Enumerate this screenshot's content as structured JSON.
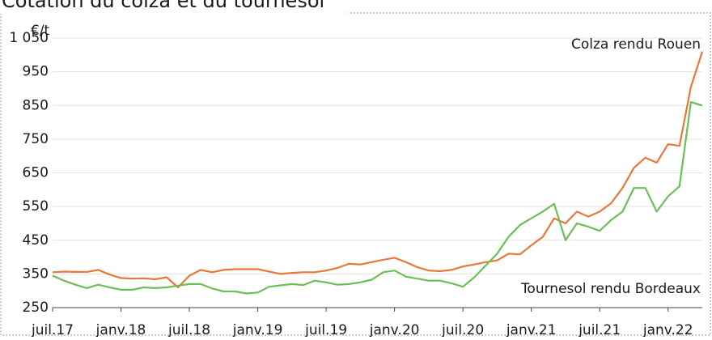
{
  "chart_data": {
    "type": "line",
    "title": "Cotation du colza et du tournesol",
    "y_unit": "€/t",
    "categories": [
      "juil.17",
      null,
      null,
      null,
      null,
      null,
      "janv.18",
      null,
      null,
      null,
      null,
      null,
      "juil.18",
      null,
      null,
      null,
      null,
      null,
      "janv.19",
      null,
      null,
      null,
      null,
      null,
      "juil.19",
      null,
      null,
      null,
      null,
      null,
      "janv.20",
      null,
      null,
      null,
      null,
      null,
      "juil.20",
      null,
      null,
      null,
      null,
      null,
      "janv.21",
      null,
      null,
      null,
      null,
      null,
      "juil.21",
      null,
      null,
      null,
      null,
      null,
      "janv.22",
      null,
      null,
      null
    ],
    "series": [
      {
        "name": "Colza rendu Rouen",
        "color": "#e8773a",
        "values": [
          355,
          357,
          356,
          356,
          362,
          348,
          338,
          336,
          337,
          334,
          340,
          310,
          345,
          362,
          355,
          362,
          364,
          364,
          364,
          357,
          350,
          353,
          355,
          355,
          360,
          368,
          380,
          378,
          385,
          392,
          398,
          385,
          370,
          360,
          358,
          362,
          372,
          378,
          385,
          390,
          410,
          408,
          435,
          460,
          515,
          500,
          535,
          520,
          535,
          560,
          605,
          665,
          695,
          680,
          735,
          730,
          905,
          1010
        ]
      },
      {
        "name": "Tournesol rendu Bordeaux",
        "color": "#6cbf56",
        "values": [
          345,
          330,
          318,
          308,
          318,
          310,
          303,
          303,
          310,
          308,
          310,
          315,
          320,
          320,
          307,
          298,
          298,
          292,
          295,
          312,
          316,
          320,
          317,
          330,
          325,
          318,
          320,
          325,
          333,
          355,
          360,
          342,
          336,
          330,
          330,
          322,
          312,
          340,
          375,
          410,
          460,
          495,
          515,
          535,
          558,
          450,
          500,
          490,
          478,
          510,
          535,
          605,
          605,
          535,
          580,
          610,
          860,
          850
        ]
      }
    ],
    "ylim": [
      250,
      1050
    ],
    "yticks": [
      250,
      350,
      450,
      550,
      650,
      750,
      850,
      950,
      {
        "value": 1050,
        "label": "1 050"
      }
    ],
    "grid": true
  }
}
